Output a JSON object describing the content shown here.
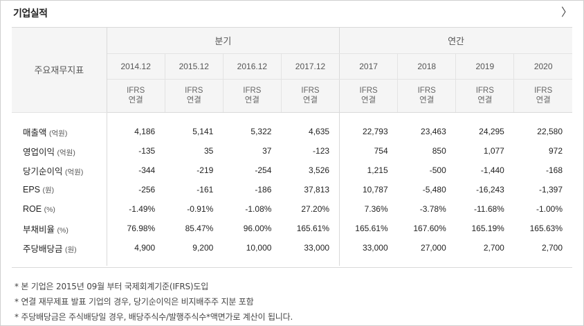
{
  "header": {
    "title": "기업실적",
    "more_icon": "chevron-right-icon",
    "more_glyph": "〉"
  },
  "table": {
    "corner_label": "주요재무지표",
    "groups": [
      "분기",
      "연간"
    ],
    "periods": [
      "2014.12",
      "2015.12",
      "2016.12",
      "2017.12",
      "2017",
      "2018",
      "2019",
      "2020"
    ],
    "basis_line1": "IFRS",
    "basis_line2": "연결",
    "rows": [
      {
        "name": "매출액",
        "unit": "(억원)",
        "values": [
          "4,186",
          "5,141",
          "5,322",
          "4,635",
          "22,793",
          "23,463",
          "24,295",
          "22,580"
        ]
      },
      {
        "name": "영업이익",
        "unit": "(억원)",
        "values": [
          "-135",
          "35",
          "37",
          "-123",
          "754",
          "850",
          "1,077",
          "972"
        ]
      },
      {
        "name": "당기순이익",
        "unit": "(억원)",
        "values": [
          "-344",
          "-219",
          "-254",
          "3,526",
          "1,215",
          "-500",
          "-1,440",
          "-168"
        ]
      },
      {
        "name": "EPS",
        "unit": "(원)",
        "values": [
          "-256",
          "-161",
          "-186",
          "37,813",
          "10,787",
          "-5,480",
          "-16,243",
          "-1,397"
        ]
      },
      {
        "name": "ROE",
        "unit": "(%)",
        "values": [
          "-1.49%",
          "-0.91%",
          "-1.08%",
          "27.20%",
          "7.36%",
          "-3.78%",
          "-11.68%",
          "-1.00%"
        ]
      },
      {
        "name": "부채비율",
        "unit": "(%)",
        "values": [
          "76.98%",
          "85.47%",
          "96.00%",
          "165.61%",
          "165.61%",
          "167.60%",
          "165.19%",
          "165.63%"
        ]
      },
      {
        "name": "주당배당금",
        "unit": "(원)",
        "values": [
          "4,900",
          "9,200",
          "10,000",
          "33,000",
          "33,000",
          "27,000",
          "2,700",
          "2,700"
        ]
      }
    ]
  },
  "notes": [
    "* 본 기업은 2015년 09월 부터 국제회계기준(IFRS)도입",
    "* 연결 재무제표 발표 기업의 경우, 당기순이익은 비지배주주 지분 포함",
    "* 주당배당금은 주식배당일 경우, 배당주식수/발행주식수*액면가로 계산이 됩니다."
  ]
}
